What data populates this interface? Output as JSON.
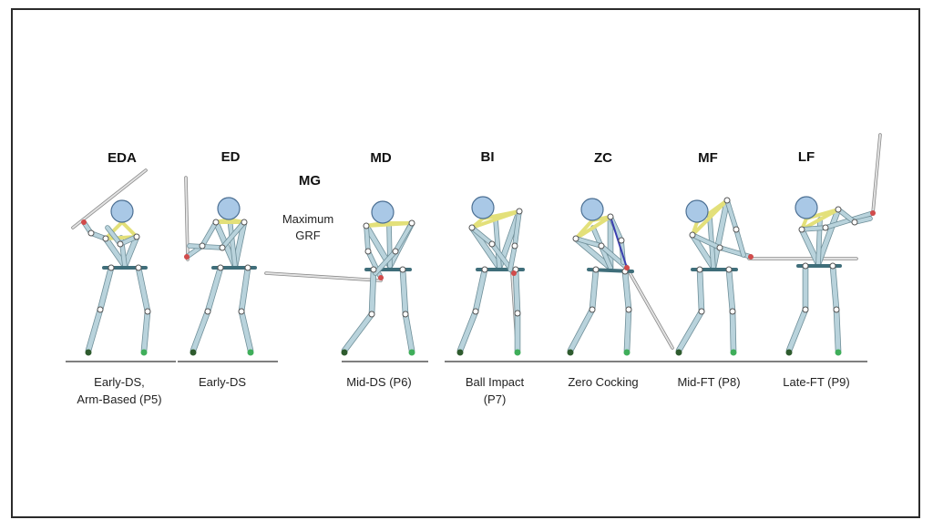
{
  "phases": [
    {
      "code": "EDA",
      "caption": [
        "Early-DS,",
        "Arm-Based (P5)"
      ]
    },
    {
      "code": "ED",
      "caption": [
        "Early-DS"
      ]
    },
    {
      "code": "MD",
      "caption": [
        "Mid-DS (P6)"
      ]
    },
    {
      "code": "BI",
      "caption": [
        "Ball Impact",
        "(P7)"
      ]
    },
    {
      "code": "ZC",
      "caption": [
        "Zero Cocking"
      ]
    },
    {
      "code": "MF",
      "caption": [
        "Mid-FT (P8)"
      ]
    },
    {
      "code": "LF",
      "caption": [
        "Late-FT (P9)"
      ]
    }
  ],
  "mg": {
    "code": "MG",
    "note": [
      "Maximum",
      "GRF"
    ]
  },
  "colors": {
    "bone": "#b9d3dc",
    "joint": "#ffffff",
    "head": "#a9c8e6",
    "shoulder": "#e3e07a",
    "ground": "#555555",
    "club": "#c9c9c9",
    "armline": "#3b3fb0"
  }
}
